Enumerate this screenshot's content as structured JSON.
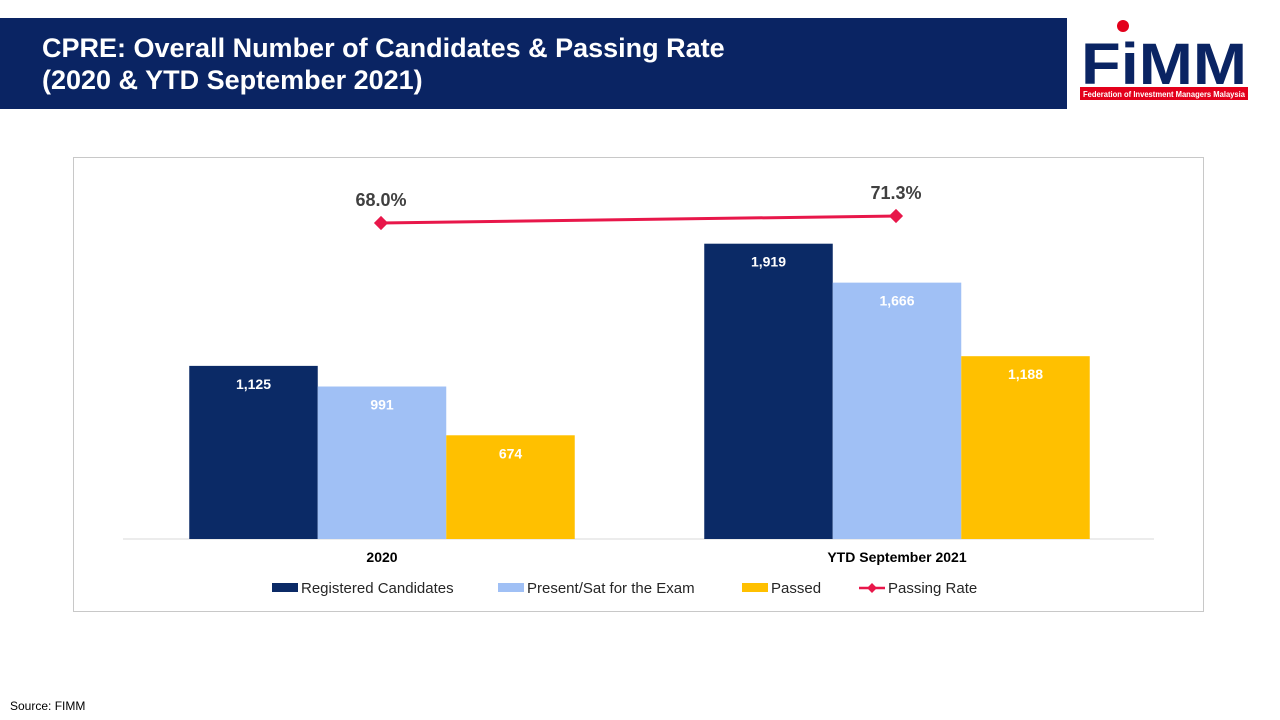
{
  "header": {
    "title_line1": "CPRE: Overall Number of Candidates & Passing Rate",
    "title_line2": "(2020 & YTD September 2021)"
  },
  "logo": {
    "text": "FiMM",
    "tagline": "Federation of Investment Managers Malaysia",
    "brand_color": "#0a2463",
    "accent_color": "#e3001b"
  },
  "footer": {
    "source": "Source: FIMM"
  },
  "chart_data": {
    "type": "bar",
    "categories": [
      "2020",
      "YTD September 2021"
    ],
    "series": [
      {
        "name": "Registered Candidates",
        "values": [
          1125,
          1919
        ],
        "labels": [
          "1,125",
          "1,919"
        ],
        "color": "#0b2a66"
      },
      {
        "name": "Present/Sat for the Exam",
        "values": [
          991,
          1666
        ],
        "labels": [
          "991",
          "1,666"
        ],
        "color": "#a0c0f5"
      },
      {
        "name": "Passed",
        "values": [
          674,
          1188
        ],
        "labels": [
          "674",
          "1,188"
        ],
        "color": "#ffc000"
      }
    ],
    "line_series": {
      "name": "Passing Rate",
      "type": "line",
      "values": [
        68.0,
        71.3
      ],
      "labels": [
        "68.0%",
        "71.3%"
      ],
      "color": "#e8174a"
    },
    "ylim": [
      0,
      2060
    ],
    "legend": "bottom",
    "grid": false
  }
}
